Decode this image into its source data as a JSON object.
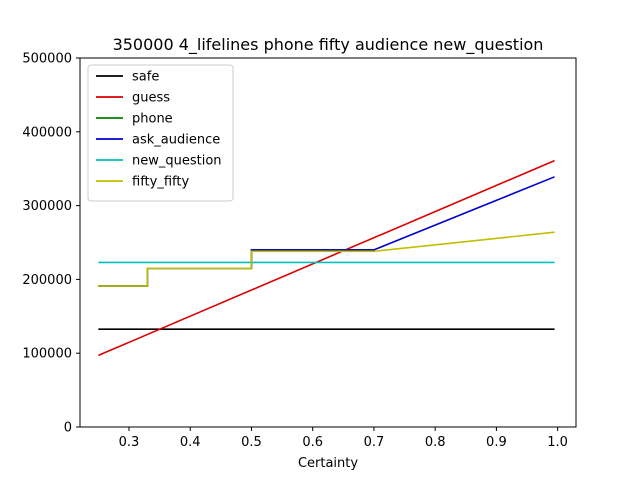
{
  "chart_data": {
    "type": "line",
    "title": "350000 4_lifelines phone fifty audience new_question",
    "xlabel": "Certainty",
    "ylabel": "",
    "xlim": [
      0.22,
      1.03
    ],
    "ylim": [
      0,
      500000
    ],
    "xticks": [
      0.3,
      0.4,
      0.5,
      0.6,
      0.7,
      0.8,
      0.9,
      1.0
    ],
    "xtick_labels": [
      "0.3",
      "0.4",
      "0.5",
      "0.6",
      "0.7",
      "0.8",
      "0.9",
      "1.0"
    ],
    "yticks": [
      0,
      100000,
      200000,
      300000,
      400000,
      500000
    ],
    "ytick_labels": [
      "0",
      "100000",
      "200000",
      "300000",
      "400000",
      "500000"
    ],
    "grid": false,
    "legend_position": "top-left",
    "series": [
      {
        "name": "safe",
        "color": "#000000",
        "x": [
          0.25,
          0.995
        ],
        "y": [
          132500,
          132500
        ]
      },
      {
        "name": "guess",
        "color": "#dd0000",
        "x": [
          0.25,
          0.995
        ],
        "y": [
          97000,
          361000
        ]
      },
      {
        "name": "phone",
        "color": "#008000",
        "x": [
          0.25,
          0.33,
          0.33,
          0.5,
          0.5,
          0.7
        ],
        "y": [
          191000,
          191000,
          215000,
          215000,
          240000,
          240000
        ]
      },
      {
        "name": "ask_audience",
        "color": "#0000cc",
        "x": [
          0.25,
          0.33,
          0.33,
          0.5,
          0.5,
          0.7,
          0.995
        ],
        "y": [
          191000,
          191000,
          215000,
          215000,
          240000,
          240000,
          339000
        ]
      },
      {
        "name": "new_question",
        "color": "#00bfbf",
        "x": [
          0.25,
          0.995
        ],
        "y": [
          223000,
          223000
        ]
      },
      {
        "name": "fifty_fifty",
        "color": "#bfbf00",
        "x": [
          0.25,
          0.33,
          0.33,
          0.5,
          0.5,
          0.7,
          0.995
        ],
        "y": [
          191000,
          191000,
          215000,
          215000,
          238000,
          238000,
          264000
        ]
      }
    ]
  }
}
